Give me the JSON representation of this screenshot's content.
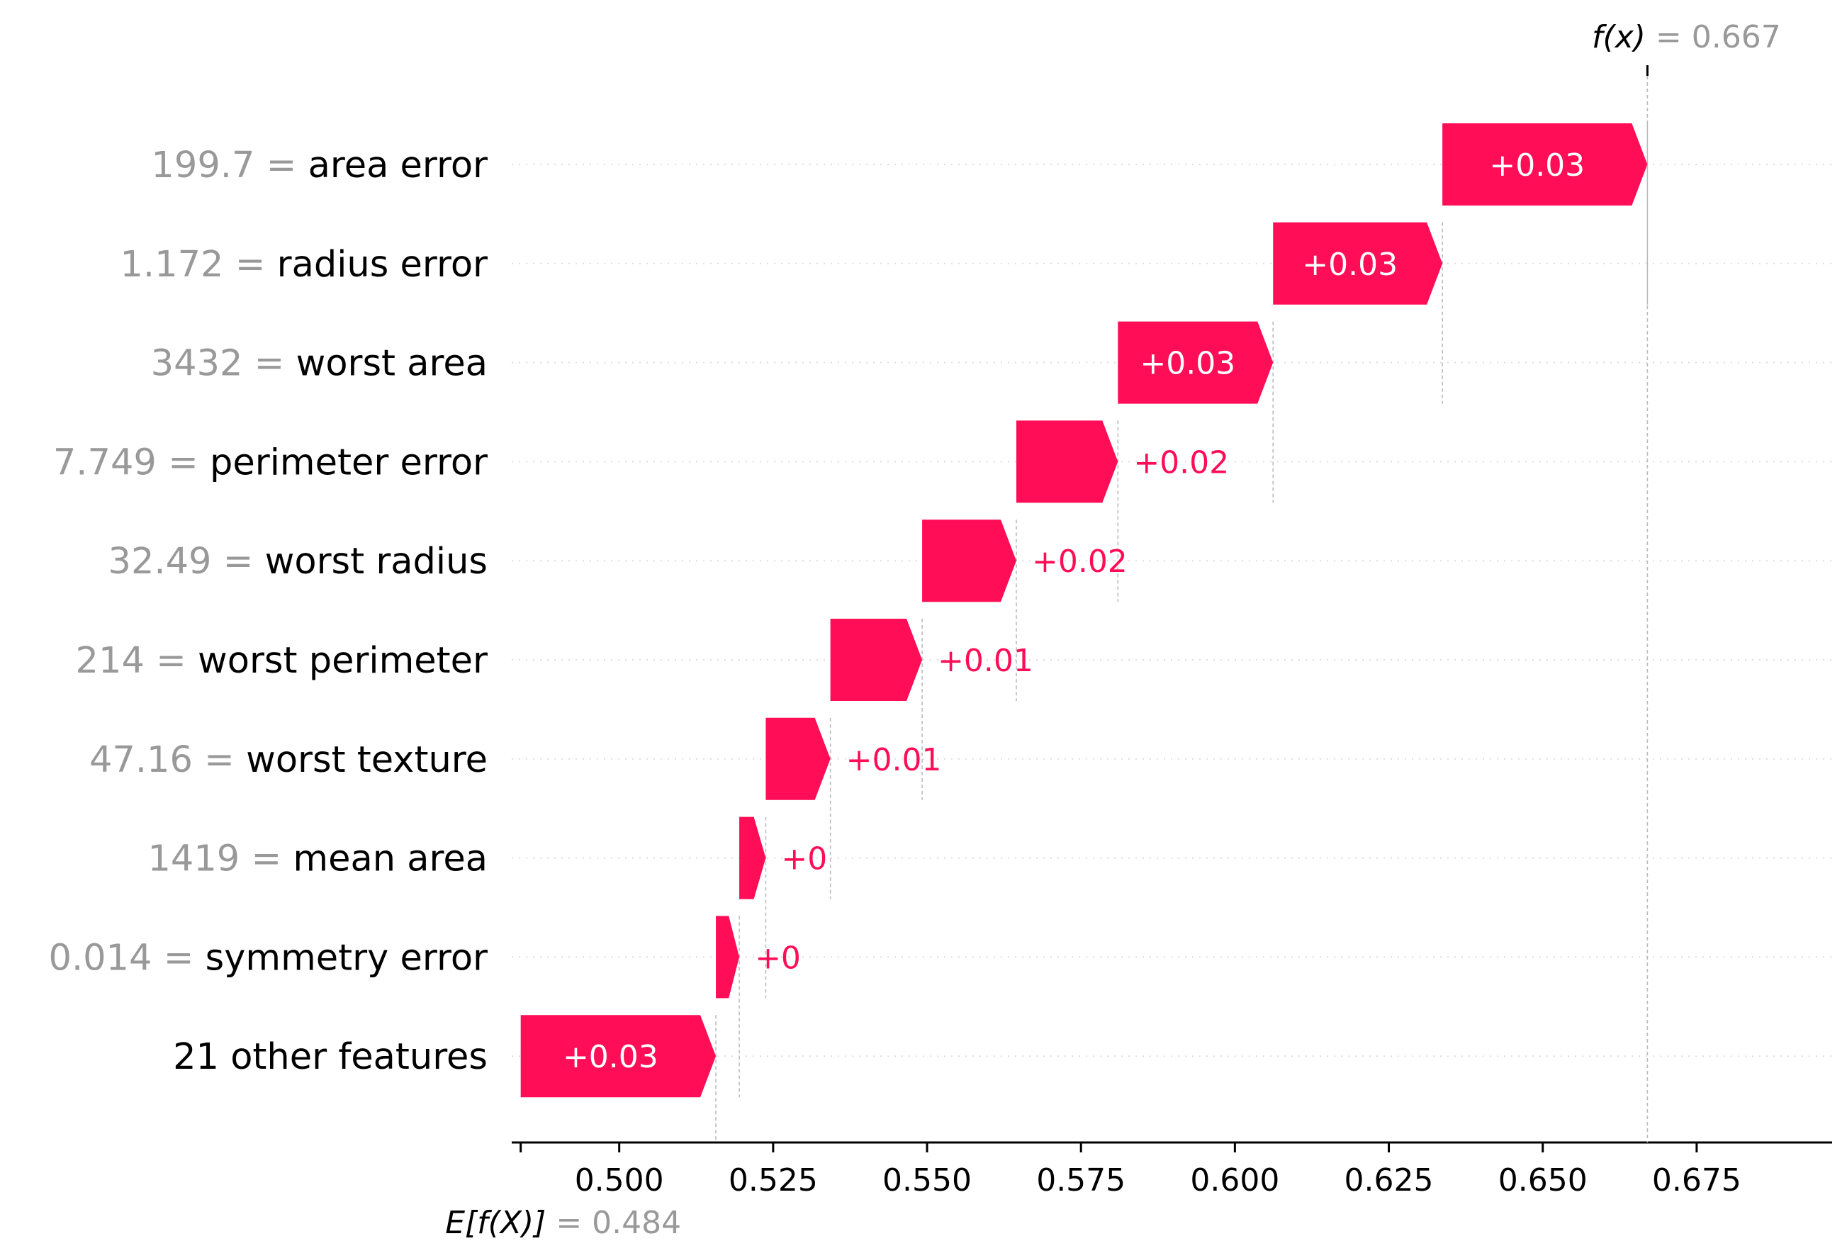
{
  "chart_data": {
    "type": "bar",
    "subtype": "waterfall",
    "base_value": 0.484,
    "output_value": 0.667,
    "base_label": "E[f(X)]",
    "output_label": "f(x)",
    "base_value_text": "0.484",
    "output_value_text": "0.667",
    "equals_sign": "=",
    "xlim": [
      0.483,
      0.697
    ],
    "xticks": [
      0.5,
      0.525,
      0.55,
      0.575,
      0.6,
      0.625,
      0.65,
      0.675
    ],
    "xtick_labels": [
      "0.500",
      "0.525",
      "0.550",
      "0.575",
      "0.600",
      "0.625",
      "0.650",
      "0.675"
    ],
    "grid": "dotted horizontal per row",
    "colors": {
      "positive": "#ff0d57",
      "feature_value": "#999999",
      "connector": "#bbbbbb"
    },
    "features": [
      {
        "value_text": "199.7",
        "name": "area error",
        "start": 0.6337,
        "end": 0.667,
        "label": "+0.03"
      },
      {
        "value_text": "1.172",
        "name": "radius error",
        "start": 0.6062,
        "end": 0.6337,
        "label": "+0.03"
      },
      {
        "value_text": "3432",
        "name": "worst area",
        "start": 0.581,
        "end": 0.6062,
        "label": "+0.03"
      },
      {
        "value_text": "7.749",
        "name": "perimeter error",
        "start": 0.5645,
        "end": 0.581,
        "label": "+0.02"
      },
      {
        "value_text": "32.49",
        "name": "worst radius",
        "start": 0.5492,
        "end": 0.5645,
        "label": "+0.02"
      },
      {
        "value_text": "214",
        "name": "worst perimeter",
        "start": 0.5343,
        "end": 0.5492,
        "label": "+0.01"
      },
      {
        "value_text": "47.16",
        "name": "worst texture",
        "start": 0.5238,
        "end": 0.5343,
        "label": "+0.01"
      },
      {
        "value_text": "1419",
        "name": "mean area",
        "start": 0.5195,
        "end": 0.5238,
        "label": "+0"
      },
      {
        "value_text": "0.014",
        "name": "symmetry error",
        "start": 0.5157,
        "end": 0.5195,
        "label": "+0"
      },
      {
        "value_text": "",
        "name": "21 other features",
        "start": 0.484,
        "end": 0.5157,
        "label": "+0.03"
      }
    ]
  }
}
